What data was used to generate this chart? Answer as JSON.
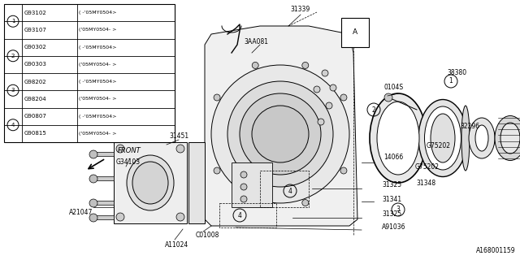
{
  "bg_color": "#ffffff",
  "line_color": "#000000",
  "watermark": "A168001159",
  "table": {
    "rows": [
      [
        "1",
        "G93102",
        "( -'05MY0504>"
      ],
      [
        "1",
        "G93107",
        "('05MY0504- >"
      ],
      [
        "2",
        "G90302",
        "( -'05MY0504>"
      ],
      [
        "2",
        "G90303",
        "('05MY0504- >"
      ],
      [
        "3",
        "G98202",
        "( -'05MY0504>"
      ],
      [
        "3",
        "G98204",
        "('05MY0504- >"
      ],
      [
        "4",
        "G90807",
        "( -'05MY0504>"
      ],
      [
        "4",
        "G90815",
        "('05MY0504- >"
      ]
    ]
  }
}
